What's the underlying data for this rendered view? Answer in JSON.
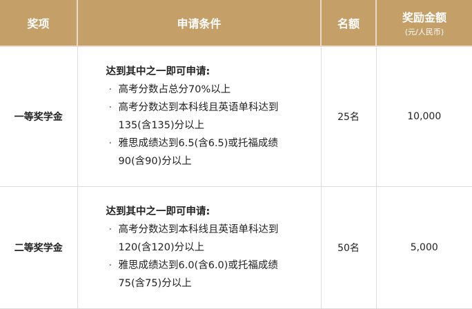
{
  "header": {
    "col1": "奖项",
    "col2": "申请条件",
    "col3": "名额",
    "col4": "奖励金额",
    "col4_sub": "(元/人民币)"
  },
  "rows": [
    {
      "name": "一等奖学金",
      "intro": "达到其中之一即可申请:",
      "items": [
        "高考分数占总分70%以上",
        "高考分数达到本科线且英语单科达到135(含135)分以上",
        "雅思成绩达到6.5(含6.5)或托福成绩90(含90)分以上"
      ],
      "quota": "25名",
      "amount": "10,000"
    },
    {
      "name": "二等奖学金",
      "intro": "达到其中之一即可申请:",
      "items": [
        "高考分数达到本科线且英语单科达到120(含120)分以上",
        "雅思成绩达到6.0(含6.0)或托福成绩75(含75)分以上"
      ],
      "quota": "50名",
      "amount": "5,000"
    }
  ]
}
